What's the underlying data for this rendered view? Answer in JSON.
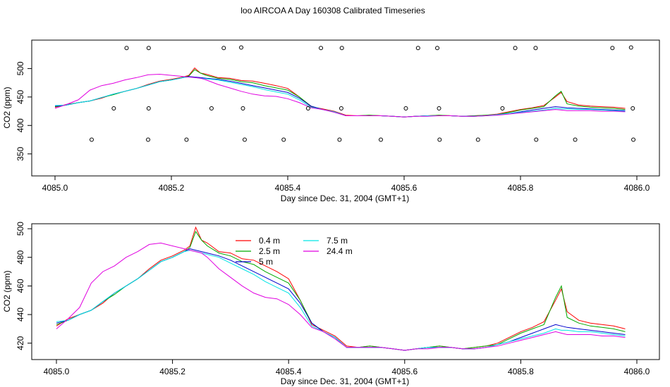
{
  "title": "loo AIRCOA A  Day 160308  Calibrated Timeseries",
  "colors": {
    "0.4 m": "#ff0000",
    "2.5 m": "#00aa00",
    "5 m": "#0000cc",
    "7.5 m": "#00e5e5",
    "24.4 m": "#e000e0",
    "axis": "#000000"
  },
  "chart_data": [
    {
      "type": "line",
      "title": "loo AIRCOA A  Day 160308  Calibrated Timeseries",
      "xlabel": "Day since Dec. 31, 2004 (GMT+1)",
      "ylabel": "CO2 (ppm)",
      "xlim": [
        4085.0,
        4086.0
      ],
      "ylim": [
        320,
        545
      ],
      "x_ticks": [
        4085.0,
        4085.2,
        4085.4,
        4085.6,
        4085.8,
        4086.0
      ],
      "x_tick_labels": [
        "4085.0",
        "4085.2",
        "4085.4",
        "4085.6",
        "4085.8",
        "4086.0"
      ],
      "y_ticks": [
        350,
        400,
        450,
        500
      ],
      "y_tick_labels": [
        "350",
        "400",
        "450",
        "500"
      ],
      "grid": false,
      "legend": "none",
      "series_ref": "lines",
      "markers": [
        {
          "x": 4085.063,
          "y": 375
        },
        {
          "x": 4085.101,
          "y": 430
        },
        {
          "x": 4085.123,
          "y": 536
        },
        {
          "x": 4085.16,
          "y": 375
        },
        {
          "x": 4085.161,
          "y": 430
        },
        {
          "x": 4085.161,
          "y": 536
        },
        {
          "x": 4085.226,
          "y": 375
        },
        {
          "x": 4085.269,
          "y": 430
        },
        {
          "x": 4085.29,
          "y": 536
        },
        {
          "x": 4085.32,
          "y": 537
        },
        {
          "x": 4085.323,
          "y": 430
        },
        {
          "x": 4085.326,
          "y": 375
        },
        {
          "x": 4085.393,
          "y": 375
        },
        {
          "x": 4085.435,
          "y": 430
        },
        {
          "x": 4085.457,
          "y": 536
        },
        {
          "x": 4085.489,
          "y": 375
        },
        {
          "x": 4085.492,
          "y": 430
        },
        {
          "x": 4085.493,
          "y": 536
        },
        {
          "x": 4085.56,
          "y": 375
        },
        {
          "x": 4085.603,
          "y": 430
        },
        {
          "x": 4085.624,
          "y": 536
        },
        {
          "x": 4085.657,
          "y": 536
        },
        {
          "x": 4085.66,
          "y": 430
        },
        {
          "x": 4085.661,
          "y": 375
        },
        {
          "x": 4085.727,
          "y": 375
        },
        {
          "x": 4085.769,
          "y": 430
        },
        {
          "x": 4085.791,
          "y": 536
        },
        {
          "x": 4085.826,
          "y": 536
        },
        {
          "x": 4085.827,
          "y": 375
        },
        {
          "x": 4085.894,
          "y": 375
        },
        {
          "x": 4085.958,
          "y": 536
        },
        {
          "x": 4085.99,
          "y": 537
        },
        {
          "x": 4085.993,
          "y": 430
        },
        {
          "x": 4085.994,
          "y": 375
        }
      ]
    },
    {
      "type": "line",
      "xlabel": "Day since Dec. 31, 2004 (GMT+1)",
      "ylabel": "CO2 (ppm)",
      "xlim": [
        4085.0,
        4086.0
      ],
      "ylim": [
        411,
        502
      ],
      "x_ticks": [
        4085.0,
        4085.2,
        4085.4,
        4085.6,
        4085.8,
        4086.0
      ],
      "x_tick_labels": [
        "4085.0",
        "4085.2",
        "4085.4",
        "4085.6",
        "4085.8",
        "4086.0"
      ],
      "y_ticks": [
        420,
        440,
        460,
        480,
        500
      ],
      "y_tick_labels": [
        "420",
        "440",
        "460",
        "480",
        "500"
      ],
      "grid": false,
      "legend": "top-center",
      "legend_items": [
        "0.4 m",
        "2.5 m",
        "5 m",
        "7.5 m",
        "24.4 m"
      ],
      "series_ref": "lines"
    }
  ],
  "lines": {
    "x": [
      4085.0,
      4085.02,
      4085.04,
      4085.06,
      4085.08,
      4085.1,
      4085.12,
      4085.14,
      4085.16,
      4085.18,
      4085.2,
      4085.22,
      4085.23,
      4085.24,
      4085.25,
      4085.26,
      4085.28,
      4085.3,
      4085.32,
      4085.34,
      4085.36,
      4085.38,
      4085.4,
      4085.42,
      4085.44,
      4085.46,
      4085.48,
      4085.5,
      4085.52,
      4085.54,
      4085.56,
      4085.58,
      4085.6,
      4085.62,
      4085.64,
      4085.66,
      4085.68,
      4085.7,
      4085.72,
      4085.74,
      4085.76,
      4085.78,
      4085.8,
      4085.82,
      4085.84,
      4085.86,
      4085.87,
      4085.88,
      4085.9,
      4085.92,
      4085.94,
      4085.96,
      4085.98
    ],
    "series": [
      {
        "name": "0.4 m",
        "values": [
          432,
          437,
          440,
          443,
          448,
          455,
          460,
          465,
          472,
          478,
          481,
          485,
          488,
          501,
          492,
          490,
          484,
          483,
          479,
          478,
          474,
          470,
          465,
          450,
          433,
          429,
          425,
          418,
          417,
          418,
          417,
          416,
          415,
          416,
          417,
          418,
          417,
          416,
          417,
          418,
          420,
          424,
          428,
          431,
          435,
          450,
          458,
          442,
          436,
          434,
          433,
          432,
          430
        ]
      },
      {
        "name": "2.5 m",
        "values": [
          433,
          436,
          440,
          443,
          449,
          454,
          460,
          465,
          471,
          477,
          480,
          484,
          487,
          498,
          492,
          488,
          483,
          481,
          477,
          475,
          470,
          466,
          462,
          450,
          434,
          428,
          424,
          417,
          417,
          418,
          417,
          416,
          415,
          416,
          417,
          418,
          417,
          416,
          417,
          418,
          419,
          423,
          427,
          430,
          433,
          452,
          460,
          438,
          434,
          432,
          431,
          430,
          428
        ]
      },
      {
        "name": "5 m",
        "values": [
          434,
          436,
          440,
          443,
          449,
          455,
          460,
          465,
          471,
          477,
          480,
          484,
          486,
          485,
          484,
          483,
          481,
          478,
          474,
          470,
          466,
          462,
          458,
          448,
          434,
          428,
          424,
          417,
          417,
          417,
          417,
          416,
          415,
          416,
          417,
          417,
          417,
          416,
          416,
          417,
          419,
          421,
          424,
          427,
          430,
          433,
          432,
          431,
          430,
          429,
          428,
          427,
          426
        ]
      },
      {
        "name": "7.5 m",
        "values": [
          435,
          436,
          440,
          443,
          449,
          455,
          460,
          465,
          471,
          477,
          480,
          484,
          485,
          484,
          483,
          482,
          480,
          476,
          472,
          468,
          463,
          459,
          455,
          445,
          432,
          428,
          424,
          417,
          417,
          417,
          417,
          416,
          415,
          416,
          417,
          417,
          417,
          416,
          416,
          417,
          419,
          421,
          423,
          425,
          427,
          430,
          429,
          429,
          428,
          428,
          427,
          426,
          425
        ]
      },
      {
        "name": "24.4 m",
        "values": [
          430,
          437,
          445,
          462,
          470,
          474,
          480,
          484,
          489,
          490,
          488,
          486,
          485,
          484,
          483,
          480,
          472,
          466,
          460,
          455,
          452,
          451,
          447,
          440,
          431,
          428,
          423,
          417,
          417,
          417,
          417,
          416,
          415,
          416,
          416,
          417,
          417,
          416,
          416,
          417,
          418,
          420,
          422,
          424,
          426,
          428,
          427,
          426,
          426,
          426,
          425,
          425,
          424
        ]
      }
    ]
  }
}
